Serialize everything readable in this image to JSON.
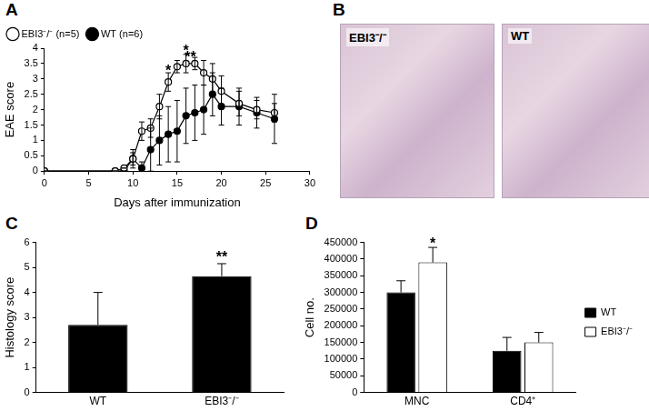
{
  "chart_data": [
    {
      "type": "line",
      "title": "A",
      "x_label": "Days after immunization",
      "y_label": "EAE score",
      "x": [
        0,
        8,
        9,
        10,
        11,
        12,
        13,
        14,
        15,
        16,
        17,
        18,
        19,
        20,
        22,
        24,
        26
      ],
      "series": [
        {
          "name": "EBI3⁻/⁻ (n=5)",
          "color": "#000000",
          "marker": "open_circle",
          "values": [
            0,
            0,
            0.1,
            0.4,
            1.3,
            1.4,
            2.1,
            2.9,
            3.4,
            3.5,
            3.5,
            3.2,
            3.0,
            2.6,
            2.2,
            2.0,
            1.9
          ],
          "errors": [
            0,
            0,
            0,
            0.2,
            0.3,
            0.3,
            0.4,
            0.3,
            0.2,
            0.3,
            0.2,
            0.4,
            0.5,
            0.5,
            0.4,
            0.3,
            0.3
          ]
        },
        {
          "name": "WT (n=6)",
          "color": "#000000",
          "marker": "circle",
          "values": [
            0,
            0,
            0,
            0.4,
            0.1,
            0.7,
            1.0,
            1.2,
            1.3,
            1.8,
            1.9,
            2.0,
            2.5,
            2.1,
            2.1,
            1.9,
            1.7
          ],
          "errors": [
            0,
            0,
            0,
            0.3,
            0.2,
            0.7,
            0.8,
            0.9,
            1.0,
            0.9,
            0.9,
            0.8,
            0.7,
            0.6,
            0.6,
            0.5,
            0.8
          ]
        }
      ],
      "xlim": [
        0,
        30
      ],
      "xticks": [
        0,
        5,
        10,
        15,
        20,
        25,
        30
      ],
      "ylim": [
        0,
        4
      ],
      "yticks": [
        0,
        0.5,
        1,
        1.5,
        2,
        2.5,
        3,
        3.5,
        4
      ],
      "grid": false,
      "legend": "top-left",
      "annotations": [
        {
          "x": 14,
          "y": 3.25,
          "text": "*"
        },
        {
          "x": 16,
          "y": 3.9,
          "text": "*"
        },
        {
          "x": 16.5,
          "y": 3.68,
          "text": "**"
        }
      ]
    },
    {
      "type": "bar",
      "title": "C",
      "y_label": "Histology score",
      "categories": [
        "WT",
        "EBI3⁻/⁻"
      ],
      "values": [
        2.7,
        4.65
      ],
      "errors": [
        1.3,
        0.5
      ],
      "color": "#000000",
      "ylim": [
        0,
        6
      ],
      "yticks": [
        0,
        1,
        2,
        3,
        4,
        5,
        6
      ],
      "grid": false,
      "annotations": [
        {
          "category": "EBI3⁻/⁻",
          "y": 5.4,
          "text": "**"
        }
      ]
    },
    {
      "type": "bar",
      "title": "D",
      "y_label": "Cell no.",
      "categories": [
        "MNC",
        "CD4⁺"
      ],
      "series": [
        {
          "name": "WT",
          "color": "#000000",
          "values": [
            300000,
            125000
          ],
          "errors": [
            35000,
            40000
          ]
        },
        {
          "name": "EBI3⁻/⁻",
          "color": "#ffffff",
          "values": [
            390000,
            150000
          ],
          "errors": [
            45000,
            30000
          ]
        }
      ],
      "ylim": [
        0,
        450000
      ],
      "yticks": [
        0,
        50000,
        100000,
        150000,
        200000,
        250000,
        300000,
        350000,
        400000,
        450000
      ],
      "grid": false,
      "legend": "right",
      "annotations": [
        {
          "category": "MNC",
          "series": "EBI3⁻/⁻",
          "y": 445000,
          "text": "*"
        }
      ]
    }
  ],
  "images": {
    "title": "B",
    "labels": [
      "EBI3⁻/⁻",
      "WT"
    ]
  }
}
